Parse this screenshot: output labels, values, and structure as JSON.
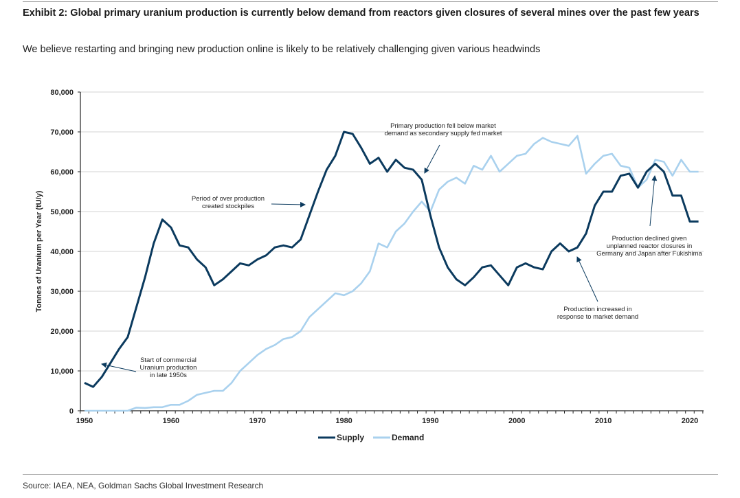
{
  "header": {
    "title": "Exhibit 2: Global primary uranium production is currently below demand from reactors given closures of several mines over the past few years",
    "subtitle": "We believe restarting and bringing new production online is likely to be relatively challenging given various headwinds"
  },
  "footer": {
    "source": "Source: IAEA, NEA, Goldman Sachs Global Investment Research"
  },
  "chart_data": {
    "type": "line",
    "title": "",
    "xlabel": "",
    "ylabel": "Tonnes of Uranium per Year (tU/y)",
    "xlim": [
      1950,
      2021
    ],
    "ylim": [
      0,
      80000
    ],
    "yticks": [
      "0",
      "10,000",
      "20,000",
      "30,000",
      "40,000",
      "50,000",
      "60,000",
      "70,000",
      "80,000"
    ],
    "xticks": [
      "1950",
      "1960",
      "1970",
      "1980",
      "1990",
      "2000",
      "2010",
      "2020"
    ],
    "grid": true,
    "legend_placement": "bottom-center",
    "x": [
      1950,
      1951,
      1952,
      1953,
      1954,
      1955,
      1956,
      1957,
      1958,
      1959,
      1960,
      1961,
      1962,
      1963,
      1964,
      1965,
      1966,
      1967,
      1968,
      1969,
      1970,
      1971,
      1972,
      1973,
      1974,
      1975,
      1976,
      1977,
      1978,
      1979,
      1980,
      1981,
      1982,
      1983,
      1984,
      1985,
      1986,
      1987,
      1988,
      1989,
      1990,
      1991,
      1992,
      1993,
      1994,
      1995,
      1996,
      1997,
      1998,
      1999,
      2000,
      2001,
      2002,
      2003,
      2004,
      2005,
      2006,
      2007,
      2008,
      2009,
      2010,
      2011,
      2012,
      2013,
      2014,
      2015,
      2016,
      2017,
      2018,
      2019,
      2020,
      2021
    ],
    "series": [
      {
        "name": "Supply",
        "color": "#0b3a5e",
        "values": [
          7000,
          6000,
          8500,
          12000,
          15500,
          18500,
          26000,
          33500,
          42000,
          48000,
          46000,
          41500,
          41000,
          38000,
          36000,
          31500,
          33000,
          35000,
          37000,
          36500,
          38000,
          39000,
          41000,
          41500,
          41000,
          43000,
          49000,
          55000,
          60500,
          64000,
          70000,
          69500,
          66000,
          62000,
          63500,
          60000,
          63000,
          61000,
          60500,
          58000,
          49000,
          41000,
          36000,
          33000,
          31500,
          33500,
          36000,
          36500,
          34000,
          31500,
          36000,
          37000,
          36000,
          35500,
          40000,
          42000,
          40000,
          41000,
          44500,
          51500,
          55000,
          55000,
          59000,
          59500,
          56000,
          60000,
          62000,
          60000,
          54000,
          54000,
          47500,
          47500
        ]
      },
      {
        "name": "Demand",
        "color": "#a9d1ee",
        "values": [
          0,
          0,
          0,
          0,
          0,
          0,
          800,
          700,
          900,
          900,
          1500,
          1500,
          2500,
          4000,
          4500,
          5000,
          5000,
          7000,
          10000,
          12000,
          14000,
          15500,
          16500,
          18000,
          18500,
          20000,
          23500,
          25500,
          27500,
          29500,
          29000,
          30000,
          32000,
          35000,
          42000,
          41000,
          45000,
          47000,
          50000,
          52500,
          50000,
          55500,
          57500,
          58500,
          57000,
          61500,
          60500,
          64000,
          60000,
          62000,
          64000,
          64500,
          67000,
          68500,
          67500,
          67000,
          66500,
          69000,
          59500,
          62000,
          64000,
          64500,
          61500,
          61000,
          56000,
          58000,
          63000,
          62500,
          59000,
          63000,
          60000,
          60000
        ]
      }
    ],
    "annotations": [
      {
        "text": [
          "Start of commercial",
          "Uranium production",
          "in late 1950s"
        ]
      },
      {
        "text": [
          "Period of over production",
          "created stockpiles"
        ]
      },
      {
        "text": [
          "Primary production fell below market",
          "demand as secondary supply fed market"
        ]
      },
      {
        "text": [
          "Production increased in",
          "response to market demand"
        ]
      },
      {
        "text": [
          "Production declined given",
          "unplanned reactor closures in",
          "Germany and Japan after Fukishima"
        ]
      }
    ]
  }
}
